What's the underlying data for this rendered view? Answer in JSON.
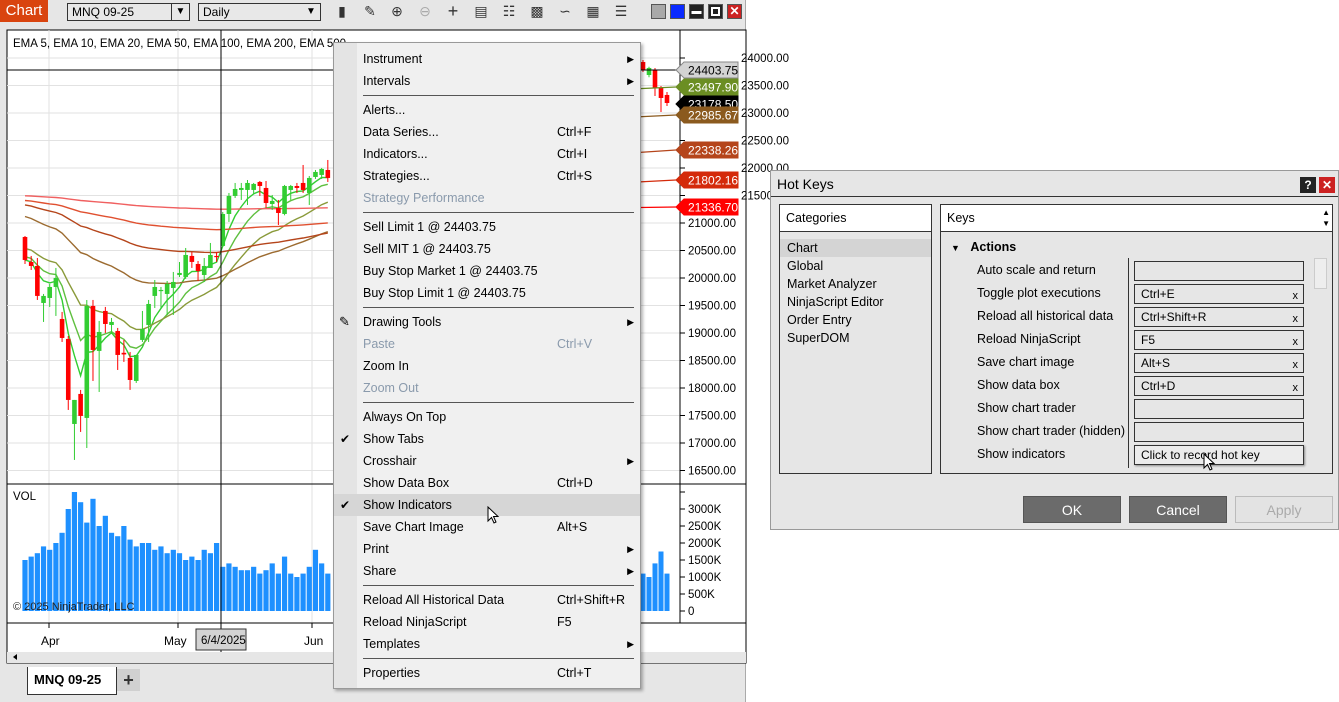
{
  "toolbar": {
    "app_badge": "Chart",
    "instrument": "MNQ 09-25",
    "interval": "Daily",
    "icons": [
      "bars-type-icon",
      "pencil-drawing-icon",
      "zoom-in-icon",
      "zoom-out-icon",
      "crosshair-icon",
      "data-box-icon",
      "indicators-icon",
      "volume-profile-icon",
      "strategies-icon",
      "properties-icon",
      "list-icon"
    ]
  },
  "window_controls": {
    "colors": {
      "gray": "#a8a8a8",
      "blue": "#0a2aff",
      "black": "#222222",
      "close": "#cc2222"
    }
  },
  "chart": {
    "indicator_legend": "EMA 5, EMA 10, EMA 20, EMA 50, EMA 100, EMA 200, EMA 500",
    "volume_label": "VOL",
    "copyright": "© 2025 NinjaTrader, LLC",
    "price_ticks": [
      "24000.00",
      "23500.00",
      "23000.00",
      "22500.00",
      "22000.00",
      "21500.00",
      "21000.00",
      "20500.00",
      "20000.00",
      "19500.00",
      "19000.00",
      "18500.00",
      "18000.00",
      "17500.00",
      "17000.00",
      "16500.00"
    ],
    "volume_ticks": [
      "3000K",
      "2500K",
      "2000K",
      "1500K",
      "1000K",
      "500K",
      "0"
    ],
    "time_ticks": [
      "Apr",
      "May",
      "Jun"
    ],
    "crosshair_date": "6/4/2025",
    "colors": {
      "up": "#32cd32",
      "down": "#ff0000",
      "volume": "#1e90ff"
    },
    "price_markers": [
      {
        "value": "24403.75",
        "color": "#d3d3d3",
        "text": "#000000"
      },
      {
        "value": "23497.90",
        "color": "#6b8e23",
        "text": "#ffffff"
      },
      {
        "value": "23178.50",
        "color": "#000000",
        "text": "#ffffff"
      },
      {
        "value": "22985.67",
        "color": "#8b5a1e",
        "text": "#ffffff"
      },
      {
        "value": "22338.26",
        "color": "#b5451b",
        "text": "#ffffff"
      },
      {
        "value": "21802.16",
        "color": "#d42a0a",
        "text": "#ffffff"
      },
      {
        "value": "21336.70",
        "color": "#ff0000",
        "text": "#ffffff"
      }
    ],
    "ema_colors": [
      "#32cd32",
      "#5fbf3f",
      "#8a9a3a",
      "#9c6b30",
      "#b5451b",
      "#e05030",
      "#f06060"
    ],
    "candles_left": [
      [
        20746,
        20764,
        20255,
        20328
      ],
      [
        20291,
        20401,
        20146,
        20219
      ],
      [
        20219,
        20364,
        19601,
        19674
      ],
      [
        19546,
        19710,
        19201,
        19674
      ],
      [
        19637,
        19892,
        19474,
        19837
      ],
      [
        19837,
        20183,
        19310,
        20001
      ],
      [
        19255,
        19383,
        18837,
        18910
      ],
      [
        18892,
        18946,
        17601,
        17783
      ],
      [
        17346,
        17783,
        16692,
        17783
      ],
      [
        17892,
        17965,
        17201,
        17492
      ],
      [
        17456,
        19601,
        16910,
        19492
      ],
      [
        19492,
        19601,
        18128,
        18692
      ],
      [
        18674,
        19219,
        17928,
        19019
      ],
      [
        19401,
        19474,
        19001,
        19164
      ],
      [
        19146,
        19274,
        18983,
        19201
      ],
      [
        19037,
        19092,
        18328,
        18601
      ],
      [
        18640,
        18874,
        18474,
        18610
      ],
      [
        18546,
        18655,
        17965,
        18146
      ],
      [
        18128,
        18601,
        18092,
        18601
      ],
      [
        18874,
        19401,
        18837,
        19074
      ],
      [
        19146,
        19601,
        18837,
        19528
      ],
      [
        19674,
        19964,
        19455,
        19837
      ],
      [
        19764,
        19837,
        19455,
        19783
      ],
      [
        19710,
        19946,
        19328,
        19892
      ],
      [
        19819,
        20110,
        19328,
        19928
      ],
      [
        20055,
        20292,
        20019,
        20092
      ],
      [
        20019,
        20546,
        19983,
        20419
      ],
      [
        20401,
        20473,
        20183,
        20292
      ],
      [
        20255,
        20310,
        19946,
        20128
      ],
      [
        20055,
        20364,
        19928,
        20219
      ],
      [
        20182,
        20637,
        20182,
        20419
      ],
      [
        20401,
        20473,
        20292,
        20383
      ],
      [
        20583,
        21200,
        20565,
        21164
      ],
      [
        21164,
        21546,
        21019,
        21492
      ],
      [
        21492,
        21728,
        21455,
        21619
      ],
      [
        21601,
        21728,
        21419,
        21637
      ],
      [
        21601,
        21782,
        21328,
        21728
      ],
      [
        21601,
        21728,
        21528,
        21710
      ],
      [
        21746,
        21764,
        21492,
        21673
      ],
      [
        21637,
        21764,
        21273,
        21364
      ],
      [
        21346,
        21510,
        21237,
        21401
      ],
      [
        21273,
        21419,
        20964,
        21182
      ],
      [
        21164,
        21692,
        21140,
        21673
      ],
      [
        21601,
        21692,
        21419,
        21673
      ],
      [
        21673,
        21728,
        21546,
        21637
      ],
      [
        21728,
        22055,
        21546,
        21601
      ],
      [
        21546,
        21855,
        21328,
        21819
      ],
      [
        21837,
        21964,
        21801,
        21928
      ],
      [
        21874,
        22001,
        21801,
        21983
      ],
      [
        21964,
        22146,
        21746,
        21819
      ]
    ],
    "candles_right": [
      [
        23927,
        23964,
        23746,
        23782
      ],
      [
        23691,
        23840,
        23650,
        23819
      ],
      [
        23782,
        23819,
        23310,
        23455
      ],
      [
        23455,
        23491,
        23019,
        23273
      ],
      [
        23328,
        23382,
        23128,
        23182
      ]
    ],
    "volume_left_k": [
      1500,
      1600,
      1700,
      1900,
      1800,
      2000,
      2300,
      3000,
      3500,
      3200,
      2600,
      3300,
      2500,
      2800,
      2300,
      2200,
      2500,
      2100,
      1900,
      2000,
      2000,
      1800,
      1900,
      1700,
      1800,
      1700,
      1500,
      1600,
      1500,
      1800,
      1700,
      2000,
      1300,
      1400,
      1300,
      1200,
      1200,
      1300,
      1100,
      1200,
      1400,
      1100,
      1600,
      1100,
      1000,
      1100,
      1300,
      1800,
      1400,
      1100
    ],
    "volume_right_k": [
      1100,
      1000,
      1400,
      1750,
      1100
    ]
  },
  "tabs": {
    "active": "MNQ 09-25",
    "add": "+"
  },
  "context_menu": {
    "items": [
      {
        "label": "Instrument",
        "submenu": true
      },
      {
        "label": "Intervals",
        "submenu": true
      },
      {
        "sep": true
      },
      {
        "label": "Alerts..."
      },
      {
        "label": "Data Series...",
        "shortcut": "Ctrl+F"
      },
      {
        "label": "Indicators...",
        "shortcut": "Ctrl+I"
      },
      {
        "label": "Strategies...",
        "shortcut": "Ctrl+S"
      },
      {
        "label": "Strategy Performance",
        "disabled": true
      },
      {
        "sep": true
      },
      {
        "label": "Sell Limit 1 @ 24403.75"
      },
      {
        "label": "Sell MIT 1 @ 24403.75"
      },
      {
        "label": "Buy Stop Market 1 @ 24403.75"
      },
      {
        "label": "Buy Stop Limit 1 @ 24403.75"
      },
      {
        "sep": true
      },
      {
        "label": "Drawing Tools",
        "submenu": true,
        "icon": "pencil-icon"
      },
      {
        "label": "Paste",
        "shortcut": "Ctrl+V",
        "disabled": true
      },
      {
        "label": "Zoom In"
      },
      {
        "label": "Zoom Out",
        "disabled": true
      },
      {
        "sep": true
      },
      {
        "label": "Always On Top"
      },
      {
        "label": "Show Tabs",
        "checked": true
      },
      {
        "label": "Crosshair",
        "submenu": true
      },
      {
        "label": "Show Data Box",
        "shortcut": "Ctrl+D"
      },
      {
        "label": "Show Indicators",
        "checked": true,
        "highlighted": true
      },
      {
        "label": "Save Chart Image",
        "shortcut": "Alt+S"
      },
      {
        "label": "Print",
        "submenu": true
      },
      {
        "label": "Share",
        "submenu": true
      },
      {
        "sep": true
      },
      {
        "label": "Reload All Historical Data",
        "shortcut": "Ctrl+Shift+R"
      },
      {
        "label": "Reload NinjaScript",
        "shortcut": "F5"
      },
      {
        "label": "Templates",
        "submenu": true
      },
      {
        "sep": true
      },
      {
        "label": "Properties",
        "shortcut": "Ctrl+T"
      }
    ]
  },
  "hotkeys": {
    "title": "Hot Keys",
    "categories_header": "Categories",
    "categories": [
      "Chart",
      "Global",
      "Market Analyzer",
      "NinjaScript Editor",
      "Order Entry",
      "SuperDOM"
    ],
    "selected_category": "Chart",
    "keys_header": "Keys",
    "group": "Actions",
    "rows": [
      {
        "label": "Auto scale and return",
        "key": ""
      },
      {
        "label": "Toggle plot executions",
        "key": "Ctrl+E"
      },
      {
        "label": "Reload all historical data",
        "key": "Ctrl+Shift+R"
      },
      {
        "label": "Reload NinjaScript",
        "key": "F5"
      },
      {
        "label": "Save chart image",
        "key": "Alt+S"
      },
      {
        "label": "Show data box",
        "key": "Ctrl+D"
      },
      {
        "label": "Show chart trader",
        "key": ""
      },
      {
        "label": "Show chart trader (hidden)",
        "key": ""
      },
      {
        "label": "Show indicators",
        "key": "Click to record hot key",
        "recording": true
      }
    ],
    "clear_label": "x",
    "ok": "OK",
    "cancel": "Cancel",
    "apply": "Apply"
  }
}
